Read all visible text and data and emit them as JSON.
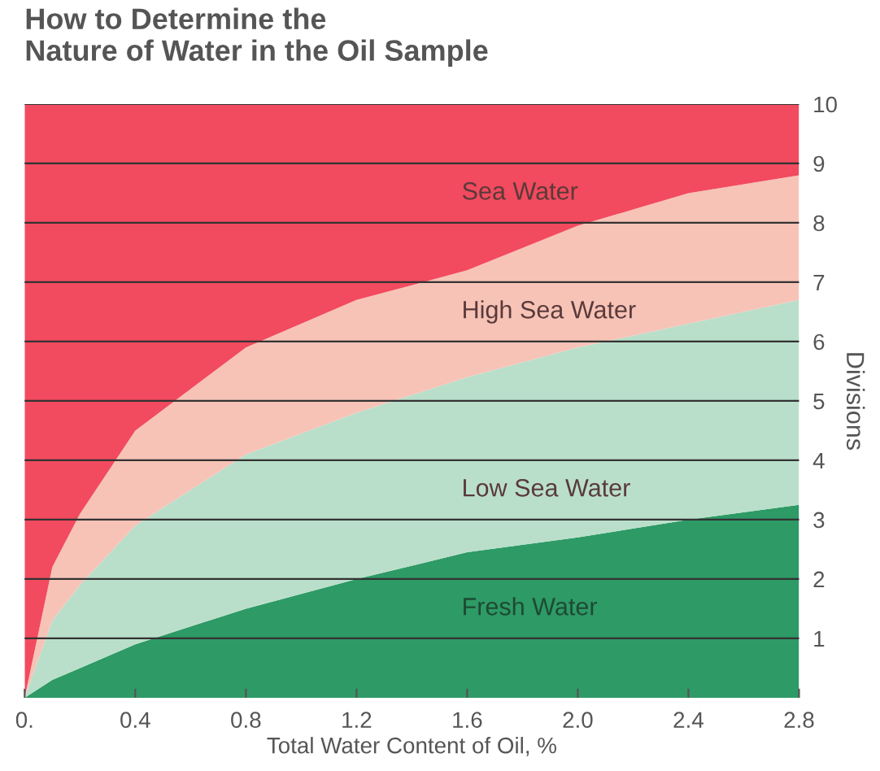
{
  "chart_data": {
    "type": "area",
    "stacked": true,
    "title": "How to Determine the\nNature of Water in the Oil Sample",
    "xlabel": "Total Water Content of Oil, %",
    "ylabel": "Divisions",
    "x": [
      0,
      0.1,
      0.2,
      0.4,
      0.8,
      1.2,
      1.6,
      2.0,
      2.4,
      2.8
    ],
    "series": [
      {
        "name": "Fresh Water",
        "color": "#2e9a66",
        "values": [
          0,
          0.3,
          0.5,
          0.9,
          1.5,
          2.0,
          2.45,
          2.7,
          3.0,
          3.25
        ]
      },
      {
        "name": "Low Sea Water",
        "color": "#b9dfca",
        "values": [
          0,
          1.0,
          1.4,
          2.0,
          2.6,
          2.8,
          2.95,
          3.2,
          3.3,
          3.45
        ]
      },
      {
        "name": "High Sea Water",
        "color": "#f7c3b7",
        "values": [
          0,
          0.9,
          1.2,
          1.6,
          1.8,
          1.9,
          1.8,
          2.05,
          2.2,
          2.1
        ]
      },
      {
        "name": "Sea Water",
        "color": "#f24a5e",
        "values": [
          10,
          7.8,
          6.9,
          5.5,
          4.1,
          3.3,
          2.8,
          2.05,
          1.5,
          1.2
        ]
      }
    ],
    "xlim": [
      0,
      2.8
    ],
    "ylim": [
      0,
      10
    ],
    "xticks": [
      {
        "value": 0,
        "label": "0."
      },
      {
        "value": 0.4,
        "label": "0.4"
      },
      {
        "value": 0.8,
        "label": "0.8"
      },
      {
        "value": 1.2,
        "label": "1.2"
      },
      {
        "value": 1.6,
        "label": "1.6"
      },
      {
        "value": 2.0,
        "label": "2.0"
      },
      {
        "value": 2.4,
        "label": "2.4"
      },
      {
        "value": 2.8,
        "label": "2.8"
      }
    ],
    "yticks": [
      1,
      2,
      3,
      4,
      5,
      6,
      7,
      8,
      9,
      10
    ],
    "grid": "y",
    "legend": false
  }
}
